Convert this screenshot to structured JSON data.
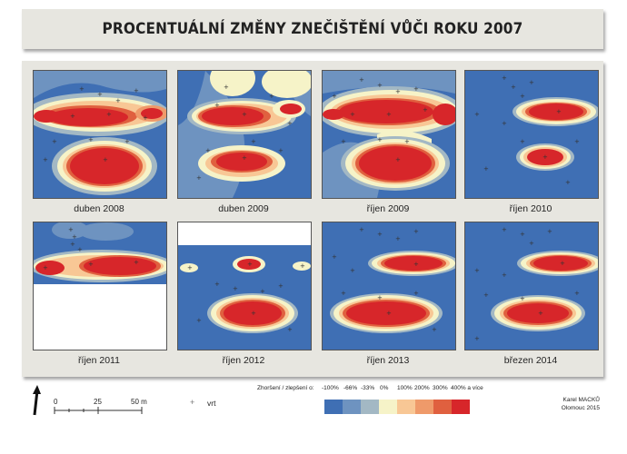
{
  "title": "PROCENTUÁLNÍ ZMĚNY ZNEČIŠTĚNÍ VŮČI ROKU 2007",
  "maps": [
    {
      "label": "duben 2008"
    },
    {
      "label": "duben 2009"
    },
    {
      "label": "říjen 2009"
    },
    {
      "label": "říjen 2010"
    },
    {
      "label": "říjen 2011"
    },
    {
      "label": "říjen 2012"
    },
    {
      "label": "říjen 2013"
    },
    {
      "label": "březen 2014"
    }
  ],
  "scalebar": {
    "ticks": [
      "0",
      "25",
      "50 m"
    ]
  },
  "legend": {
    "point_symbol": "+",
    "point_label": "vrt",
    "title": "Zhoršení / zlepšení o:",
    "classes": [
      "-100%",
      "-66%",
      "-33%",
      "0%",
      "100%",
      "200%",
      "300%",
      "400% a více"
    ],
    "colors": [
      "#3f6fb4",
      "#6e93c0",
      "#a3b8c4",
      "#f6f3c8",
      "#f8c795",
      "#ef9a6a",
      "#e0603f",
      "#d7262a"
    ]
  },
  "author": {
    "name": "Karel MACKŮ",
    "place_year": "Olomouc 2015"
  }
}
